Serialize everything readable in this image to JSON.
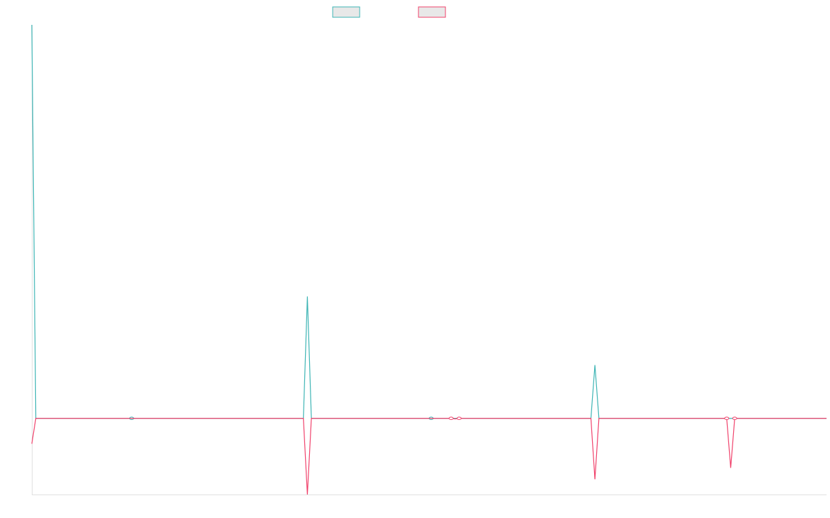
{
  "chart_data": {
    "type": "line",
    "title": "",
    "xlabel": "",
    "ylabel": "",
    "grid": false,
    "legend_position": "top-center",
    "x_count": 200,
    "ylim": [
      -300,
      1550
    ],
    "series": [
      {
        "color": "#3cb4b4",
        "fill": "#e8e8e8",
        "points": [
          [
            0,
            1550
          ],
          [
            1,
            0
          ],
          [
            25,
            0
          ],
          [
            68,
            0
          ],
          [
            69,
            480
          ],
          [
            70,
            0
          ],
          [
            100,
            0
          ],
          [
            140,
            0
          ],
          [
            141,
            210
          ],
          [
            142,
            0
          ],
          [
            175,
            0
          ],
          [
            199,
            0
          ]
        ],
        "markers": [
          25,
          100
        ]
      },
      {
        "color": "#f0406a",
        "fill": "#e8e8e8",
        "points": [
          [
            0,
            -100
          ],
          [
            1,
            0
          ],
          [
            68,
            0
          ],
          [
            69,
            -300
          ],
          [
            70,
            0
          ],
          [
            105,
            0
          ],
          [
            106,
            -2
          ],
          [
            107,
            0
          ],
          [
            140,
            0
          ],
          [
            141,
            -240
          ],
          [
            142,
            0
          ],
          [
            174,
            0
          ],
          [
            175,
            -195
          ],
          [
            176,
            0
          ],
          [
            199,
            0
          ]
        ],
        "markers": [
          105,
          107,
          174,
          176
        ]
      }
    ]
  }
}
